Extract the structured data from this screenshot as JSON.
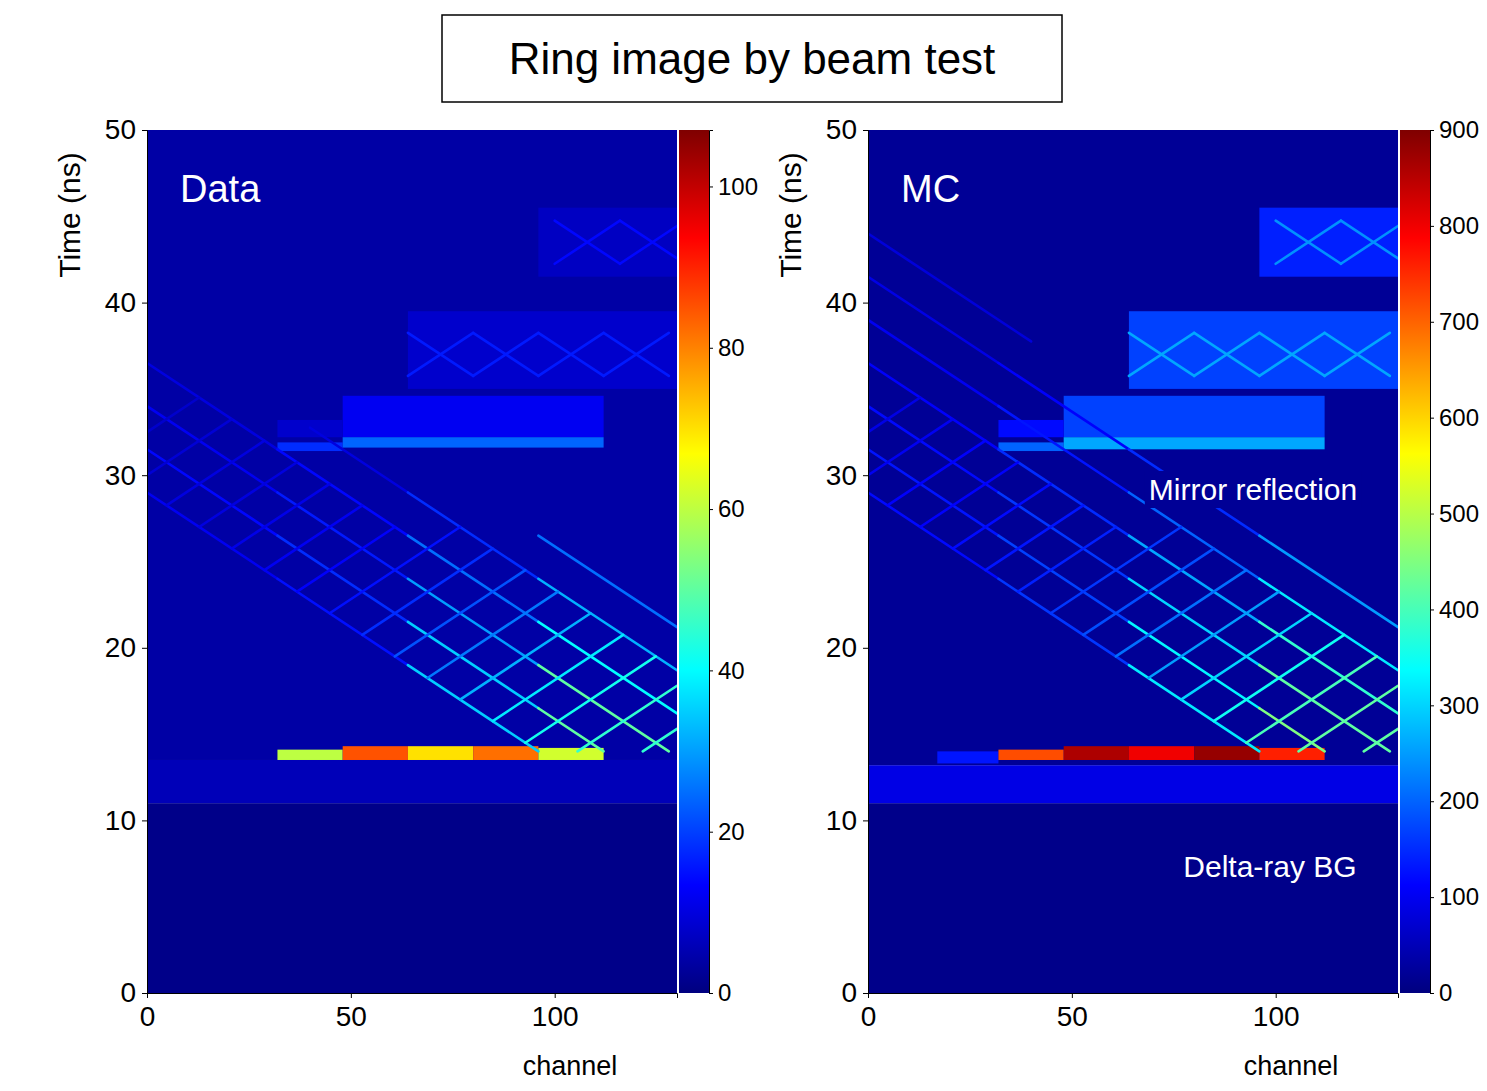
{
  "title": "Ring image by beam test",
  "chart_data": [
    {
      "type": "heatmap",
      "panel_label": "Data",
      "xlabel": "channel",
      "ylabel": "Time (ns)",
      "xlim": [
        0,
        130
      ],
      "ylim": [
        0,
        50
      ],
      "xticks": [
        0,
        50,
        100
      ],
      "yticks": [
        0,
        10,
        20,
        30,
        40,
        50
      ],
      "colorbar": {
        "range": [
          0,
          107
        ],
        "ticks": [
          0,
          20,
          40,
          60,
          80,
          100
        ]
      },
      "cells": [
        [
          0,
          130,
          0,
          11,
          1
        ],
        [
          0,
          130,
          11,
          13.5,
          6
        ],
        [
          0,
          130,
          13.5,
          50,
          4
        ],
        [
          48,
          112,
          32.2,
          34.6,
          12
        ],
        [
          32,
          48,
          32.2,
          33.2,
          8
        ],
        [
          64,
          130,
          35,
          39.5,
          8
        ],
        [
          96,
          130,
          41.5,
          45.5,
          7
        ],
        [
          32,
          48,
          31.4,
          31.9,
          18
        ],
        [
          48,
          112,
          31.6,
          32.2,
          24
        ],
        [
          32,
          48,
          13.5,
          14.1,
          60
        ],
        [
          48,
          64,
          13.5,
          14.3,
          85
        ],
        [
          64,
          80,
          13.5,
          14.3,
          70
        ],
        [
          80,
          96,
          13.5,
          14.3,
          82
        ],
        [
          96,
          112,
          13.5,
          14.2,
          62
        ]
      ],
      "ridges": [
        [
          0,
          29,
          32,
          24,
          12
        ],
        [
          32,
          24,
          64,
          19,
          15
        ],
        [
          64,
          19,
          96,
          14,
          35
        ],
        [
          0,
          31.5,
          32,
          26.5,
          14
        ],
        [
          32,
          26.5,
          64,
          21.5,
          18
        ],
        [
          64,
          21.5,
          96,
          16.5,
          35
        ],
        [
          96,
          16.5,
          112,
          14,
          50
        ],
        [
          0,
          34,
          32,
          29,
          12
        ],
        [
          32,
          29,
          64,
          24,
          16
        ],
        [
          64,
          24,
          96,
          19,
          30
        ],
        [
          96,
          19,
          128,
          14,
          50
        ],
        [
          0,
          36.5,
          32,
          31.5,
          10
        ],
        [
          32,
          31.5,
          64,
          26.5,
          14
        ],
        [
          64,
          26.5,
          96,
          21.5,
          25
        ],
        [
          96,
          21.5,
          130,
          16.2,
          40
        ],
        [
          40,
          32.75,
          64,
          29,
          10
        ],
        [
          64,
          29,
          96,
          24,
          18
        ],
        [
          96,
          24,
          130,
          18.7,
          32
        ],
        [
          96,
          26.5,
          130,
          21.2,
          25
        ],
        [
          0,
          32.5,
          12.8,
          34.5,
          8
        ],
        [
          0,
          30,
          20.8,
          33.25,
          9
        ],
        [
          4.8,
          28.25,
          28.8,
          32,
          10
        ],
        [
          12.8,
          27,
          36.8,
          30.75,
          10
        ],
        [
          20.8,
          25.75,
          44.8,
          29.5,
          11
        ],
        [
          28.8,
          24.5,
          52.8,
          28.25,
          12
        ],
        [
          36.8,
          23.25,
          60.8,
          27,
          13
        ],
        [
          44.8,
          22,
          76.8,
          27,
          15
        ],
        [
          52.8,
          20.75,
          84.8,
          25.75,
          18
        ],
        [
          60.8,
          19.5,
          92.8,
          24.5,
          22
        ],
        [
          68.8,
          18.25,
          100.8,
          23.25,
          26
        ],
        [
          76.8,
          17,
          108.8,
          22,
          32
        ],
        [
          84.8,
          15.75,
          116.8,
          20.75,
          38
        ],
        [
          92.8,
          14.5,
          124.8,
          19.5,
          42
        ],
        [
          105.6,
          14,
          130,
          17.8,
          45
        ],
        [
          121.6,
          14,
          130,
          15.3,
          45
        ],
        [
          64,
          38.25,
          80,
          35.75,
          16
        ],
        [
          64,
          35.75,
          80,
          38.25,
          16
        ],
        [
          80,
          38.25,
          96,
          35.75,
          16
        ],
        [
          80,
          35.75,
          96,
          38.25,
          16
        ],
        [
          96,
          38.25,
          112,
          35.75,
          16
        ],
        [
          96,
          35.75,
          112,
          38.25,
          16
        ],
        [
          112,
          38.25,
          128,
          35.75,
          16
        ],
        [
          112,
          35.75,
          128,
          38.25,
          16
        ],
        [
          100,
          44.75,
          116,
          42.25,
          14
        ],
        [
          100,
          42.25,
          116,
          44.75,
          14
        ],
        [
          116,
          44.75,
          130,
          42.56,
          14
        ],
        [
          116,
          42.25,
          130,
          44.44,
          14
        ]
      ]
    },
    {
      "type": "heatmap",
      "panel_label": "MC",
      "xlabel": "channel",
      "ylabel": "Time (ns)",
      "xlim": [
        0,
        130
      ],
      "ylim": [
        0,
        50
      ],
      "xticks": [
        0,
        50,
        100
      ],
      "yticks": [
        0,
        10,
        20,
        30,
        40,
        50
      ],
      "colorbar": {
        "range": [
          0,
          900
        ],
        "ticks": [
          0,
          100,
          200,
          300,
          400,
          500,
          600,
          700,
          800,
          900
        ]
      },
      "annotations": [
        "Mirror reflection",
        "Delta-ray BG"
      ],
      "cells": [
        [
          0,
          130,
          0,
          11,
          10
        ],
        [
          0,
          130,
          11,
          13.2,
          90
        ],
        [
          0,
          130,
          13.2,
          50,
          20
        ],
        [
          17,
          32,
          13.3,
          14,
          130
        ],
        [
          48,
          112,
          32.2,
          34.6,
          170
        ],
        [
          32,
          48,
          32.2,
          33.2,
          120
        ],
        [
          64,
          130,
          35,
          39.5,
          170
        ],
        [
          96,
          130,
          41.5,
          45.5,
          140
        ],
        [
          32,
          48,
          31.4,
          31.9,
          200
        ],
        [
          48,
          112,
          31.5,
          32.2,
          260
        ],
        [
          32,
          48,
          13.5,
          14.1,
          720
        ],
        [
          48,
          64,
          13.5,
          14.3,
          860
        ],
        [
          64,
          80,
          13.5,
          14.3,
          800
        ],
        [
          80,
          96,
          13.5,
          14.3,
          880
        ],
        [
          96,
          112,
          13.5,
          14.2,
          760
        ]
      ],
      "ridges": [
        [
          0,
          29,
          32,
          24,
          120
        ],
        [
          32,
          24,
          64,
          19,
          160
        ],
        [
          64,
          19,
          96,
          14,
          320
        ],
        [
          0,
          31.5,
          32,
          26.5,
          130
        ],
        [
          32,
          26.5,
          64,
          21.5,
          170
        ],
        [
          64,
          21.5,
          96,
          16.5,
          330
        ],
        [
          96,
          16.5,
          112,
          14,
          450
        ],
        [
          0,
          34,
          32,
          29,
          120
        ],
        [
          32,
          29,
          64,
          24,
          160
        ],
        [
          64,
          24,
          96,
          19,
          300
        ],
        [
          96,
          19,
          128,
          14,
          420
        ],
        [
          0,
          36.5,
          32,
          31.5,
          110
        ],
        [
          32,
          31.5,
          64,
          26.5,
          150
        ],
        [
          64,
          26.5,
          96,
          21.5,
          260
        ],
        [
          96,
          21.5,
          130,
          16.2,
          380
        ],
        [
          0,
          39,
          32,
          34,
          100
        ],
        [
          32,
          34,
          64,
          29,
          130
        ],
        [
          64,
          29,
          96,
          24,
          200
        ],
        [
          96,
          24,
          130,
          18.7,
          320
        ],
        [
          0,
          41.5,
          32,
          36.5,
          90
        ],
        [
          32,
          36.5,
          64,
          31.5,
          110
        ],
        [
          64,
          31.5,
          96,
          26.5,
          150
        ],
        [
          96,
          26.5,
          130,
          21.2,
          250
        ],
        [
          0,
          44,
          40,
          37.75,
          80
        ],
        [
          0,
          32.5,
          12.8,
          34.5,
          90
        ],
        [
          0,
          30,
          20.8,
          33.25,
          100
        ],
        [
          4.8,
          28.25,
          28.8,
          32,
          110
        ],
        [
          12.8,
          27,
          36.8,
          30.75,
          110
        ],
        [
          20.8,
          25.75,
          44.8,
          29.5,
          120
        ],
        [
          28.8,
          24.5,
          52.8,
          28.25,
          130
        ],
        [
          36.8,
          23.25,
          60.8,
          27,
          140
        ],
        [
          44.8,
          22,
          76.8,
          27,
          160
        ],
        [
          52.8,
          20.75,
          84.8,
          25.75,
          180
        ],
        [
          60.8,
          19.5,
          92.8,
          24.5,
          210
        ],
        [
          68.8,
          18.25,
          100.8,
          23.25,
          250
        ],
        [
          76.8,
          17,
          108.8,
          22,
          300
        ],
        [
          84.8,
          15.75,
          116.8,
          20.75,
          350
        ],
        [
          92.8,
          14.5,
          124.8,
          19.5,
          400
        ],
        [
          105.6,
          14,
          130,
          17.8,
          420
        ],
        [
          121.6,
          14,
          130,
          15.3,
          420
        ],
        [
          64,
          38.25,
          80,
          35.75,
          260
        ],
        [
          64,
          35.75,
          80,
          38.25,
          260
        ],
        [
          80,
          38.25,
          96,
          35.75,
          260
        ],
        [
          80,
          35.75,
          96,
          38.25,
          260
        ],
        [
          96,
          38.25,
          112,
          35.75,
          260
        ],
        [
          96,
          35.75,
          112,
          38.25,
          260
        ],
        [
          112,
          38.25,
          128,
          35.75,
          260
        ],
        [
          112,
          35.75,
          128,
          38.25,
          260
        ],
        [
          100,
          44.75,
          116,
          42.25,
          240
        ],
        [
          100,
          42.25,
          116,
          44.75,
          240
        ],
        [
          116,
          44.75,
          130,
          42.56,
          240
        ],
        [
          116,
          42.25,
          130,
          44.44,
          240
        ]
      ]
    }
  ]
}
